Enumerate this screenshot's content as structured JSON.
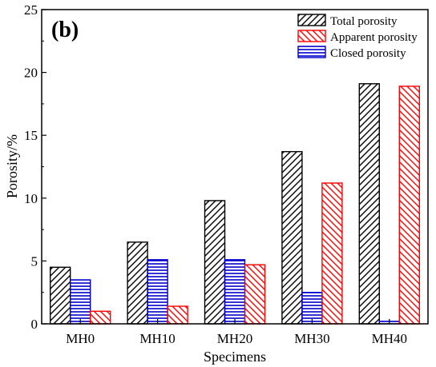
{
  "panel_label": "(b)",
  "chart_data": {
    "type": "bar",
    "xlabel": "Specimens",
    "ylabel": "Porosity/%",
    "categories": [
      "MH0",
      "MH10",
      "MH20",
      "MH30",
      "MH40"
    ],
    "ylim": [
      0,
      25
    ],
    "yticks": [
      0,
      5,
      10,
      15,
      20,
      25
    ],
    "grid": false,
    "legend_position": "top-right",
    "series": [
      {
        "name": "Total porosity",
        "values": [
          4.5,
          6.5,
          9.8,
          13.7,
          19.1
        ],
        "color": "#000000",
        "pattern": "diagonal-up"
      },
      {
        "name": "Closed porosity",
        "values": [
          3.5,
          5.1,
          5.1,
          2.5,
          0.2
        ],
        "color": "#0000cc",
        "pattern": "horizontal"
      },
      {
        "name": "Apparent porosity",
        "values": [
          1.0,
          1.4,
          4.7,
          11.2,
          18.9
        ],
        "color": "#ff0000",
        "pattern": "diagonal-down"
      }
    ],
    "legend_order": [
      0,
      2,
      1
    ]
  }
}
